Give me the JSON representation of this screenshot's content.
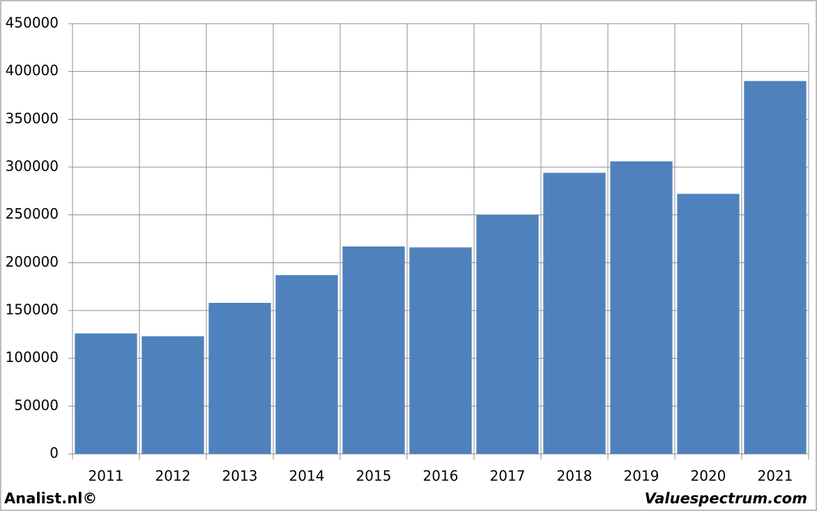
{
  "chart_data": {
    "type": "bar",
    "categories": [
      "2011",
      "2012",
      "2013",
      "2014",
      "2015",
      "2016",
      "2017",
      "2018",
      "2019",
      "2020",
      "2021"
    ],
    "values": [
      126000,
      123000,
      158000,
      187000,
      217000,
      216000,
      250000,
      294000,
      306000,
      272000,
      390000
    ],
    "color": "#4f81bd",
    "ylim": [
      0,
      450000
    ],
    "yticks": [
      0,
      50000,
      100000,
      150000,
      200000,
      250000,
      300000,
      350000,
      400000,
      450000
    ],
    "grid": true,
    "footer_left": "Analist.nl©",
    "footer_right": "Valuespectrum.com"
  }
}
